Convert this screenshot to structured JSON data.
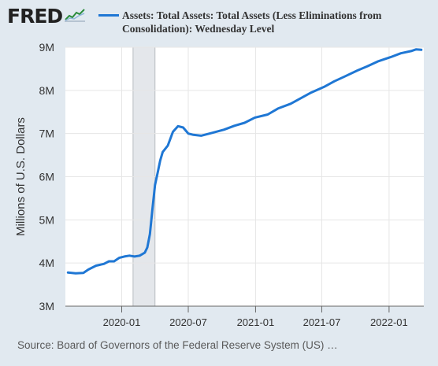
{
  "logo": {
    "text": "FRED",
    "icon": "line-chart-icon"
  },
  "source": "Source: Board of Governors of the Federal Reserve System (US) …",
  "colors": {
    "series": "#1f77d4",
    "background": "#e1e9f0",
    "plot_bg": "#ffffff",
    "recession": "#e4e7eb"
  },
  "chart_data": {
    "type": "line",
    "series": [
      {
        "name": "Assets: Total Assets: Total Assets (Less Eliminations from Consolidation): Wednesday Level",
        "points": [
          [
            "2019-08-07",
            3.78
          ],
          [
            "2019-08-28",
            3.76
          ],
          [
            "2019-09-18",
            3.77
          ],
          [
            "2019-10-02",
            3.85
          ],
          [
            "2019-10-23",
            3.94
          ],
          [
            "2019-11-13",
            3.98
          ],
          [
            "2019-11-27",
            4.04
          ],
          [
            "2019-12-11",
            4.04
          ],
          [
            "2019-12-25",
            4.12
          ],
          [
            "2020-01-08",
            4.15
          ],
          [
            "2020-01-22",
            4.17
          ],
          [
            "2020-02-05",
            4.15
          ],
          [
            "2020-02-19",
            4.17
          ],
          [
            "2020-03-04",
            4.24
          ],
          [
            "2020-03-11",
            4.36
          ],
          [
            "2020-03-18",
            4.67
          ],
          [
            "2020-03-25",
            5.25
          ],
          [
            "2020-04-01",
            5.81
          ],
          [
            "2020-04-08",
            6.08
          ],
          [
            "2020-04-15",
            6.37
          ],
          [
            "2020-04-22",
            6.57
          ],
          [
            "2020-05-06",
            6.72
          ],
          [
            "2020-05-20",
            7.04
          ],
          [
            "2020-06-03",
            7.17
          ],
          [
            "2020-06-17",
            7.14
          ],
          [
            "2020-07-01",
            7.0
          ],
          [
            "2020-07-15",
            6.97
          ],
          [
            "2020-08-05",
            6.95
          ],
          [
            "2020-09-02",
            7.01
          ],
          [
            "2020-10-07",
            7.09
          ],
          [
            "2020-11-04",
            7.18
          ],
          [
            "2020-12-02",
            7.25
          ],
          [
            "2020-12-30",
            7.37
          ],
          [
            "2021-02-03",
            7.44
          ],
          [
            "2021-03-03",
            7.58
          ],
          [
            "2021-04-07",
            7.69
          ],
          [
            "2021-05-05",
            7.82
          ],
          [
            "2021-06-02",
            7.95
          ],
          [
            "2021-07-07",
            8.08
          ],
          [
            "2021-08-04",
            8.21
          ],
          [
            "2021-09-01",
            8.32
          ],
          [
            "2021-10-06",
            8.46
          ],
          [
            "2021-11-03",
            8.56
          ],
          [
            "2021-12-01",
            8.67
          ],
          [
            "2022-01-05",
            8.77
          ],
          [
            "2022-02-02",
            8.86
          ],
          [
            "2022-03-02",
            8.91
          ],
          [
            "2022-03-16",
            8.95
          ],
          [
            "2022-03-30",
            8.94
          ]
        ]
      }
    ],
    "ylabel": "Millions of U.S. Dollars",
    "ylim": [
      3,
      9
    ],
    "y_ticks": [
      3,
      4,
      5,
      6,
      7,
      8,
      9
    ],
    "y_tick_labels": [
      "3M",
      "4M",
      "5M",
      "6M",
      "7M",
      "8M",
      "9M"
    ],
    "xlim": [
      "2019-07-31",
      "2022-04-06"
    ],
    "x_ticks": [
      "2020-01-01",
      "2020-07-01",
      "2021-01-01",
      "2021-07-01",
      "2022-01-01"
    ],
    "x_tick_labels": [
      "2020-01",
      "2020-07",
      "2021-01",
      "2021-07",
      "2022-01"
    ],
    "recession": [
      "2020-02-01",
      "2020-04-01"
    ],
    "grid": true,
    "legend_position": "top"
  }
}
